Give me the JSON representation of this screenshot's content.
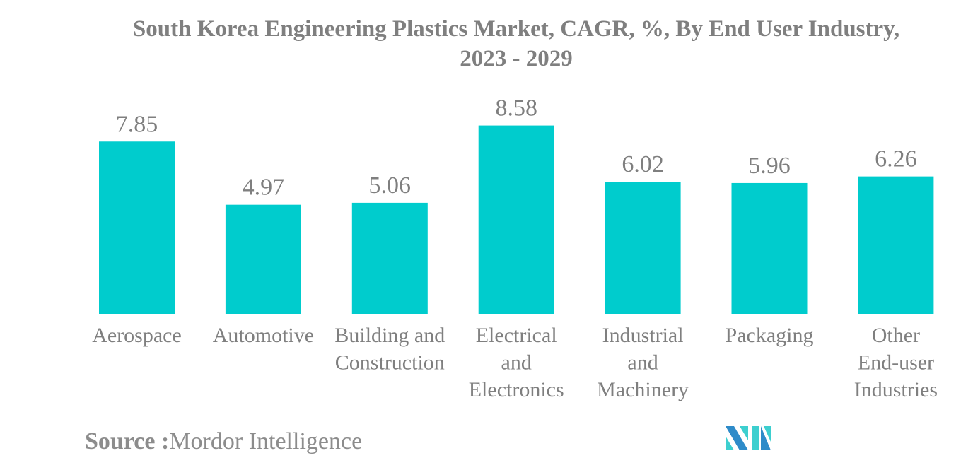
{
  "chart_data": {
    "type": "bar",
    "title": "South Korea Engineering Plastics Market, CAGR, %, By End User Industry, 2023 - 2029",
    "title_lines": [
      "South Korea Engineering Plastics Market, CAGR, %, By End User Industry,",
      "2023 - 2029"
    ],
    "categories": [
      "Aerospace",
      "Automotive",
      "Building and Construction",
      "Electrical and Electronics",
      "Industrial and Machinery",
      "Packaging",
      "Other End-user Industries"
    ],
    "category_lines": [
      [
        "Aerospace"
      ],
      [
        "Automotive"
      ],
      [
        "Building and",
        "Construction"
      ],
      [
        "Electrical",
        "and",
        "Electronics"
      ],
      [
        "Industrial",
        "and",
        "Machinery"
      ],
      [
        "Packaging"
      ],
      [
        "Other",
        "End-user",
        "Industries"
      ]
    ],
    "values": [
      7.85,
      4.97,
      5.06,
      8.58,
      6.02,
      5.96,
      6.26
    ],
    "data_labels": [
      "7.85",
      "4.97",
      "5.06",
      "8.58",
      "6.02",
      "5.96",
      "6.26"
    ],
    "xlabel": "",
    "ylabel": "",
    "ylim": [
      0,
      10
    ],
    "grid": false,
    "bar_color": "#00cccd"
  },
  "source": {
    "label": "Source :",
    "value": "Mordor Intelligence"
  },
  "logo": {
    "name": "mordor-intelligence-logo",
    "colors": [
      "#2e8bc9",
      "#3dcfcf"
    ]
  }
}
